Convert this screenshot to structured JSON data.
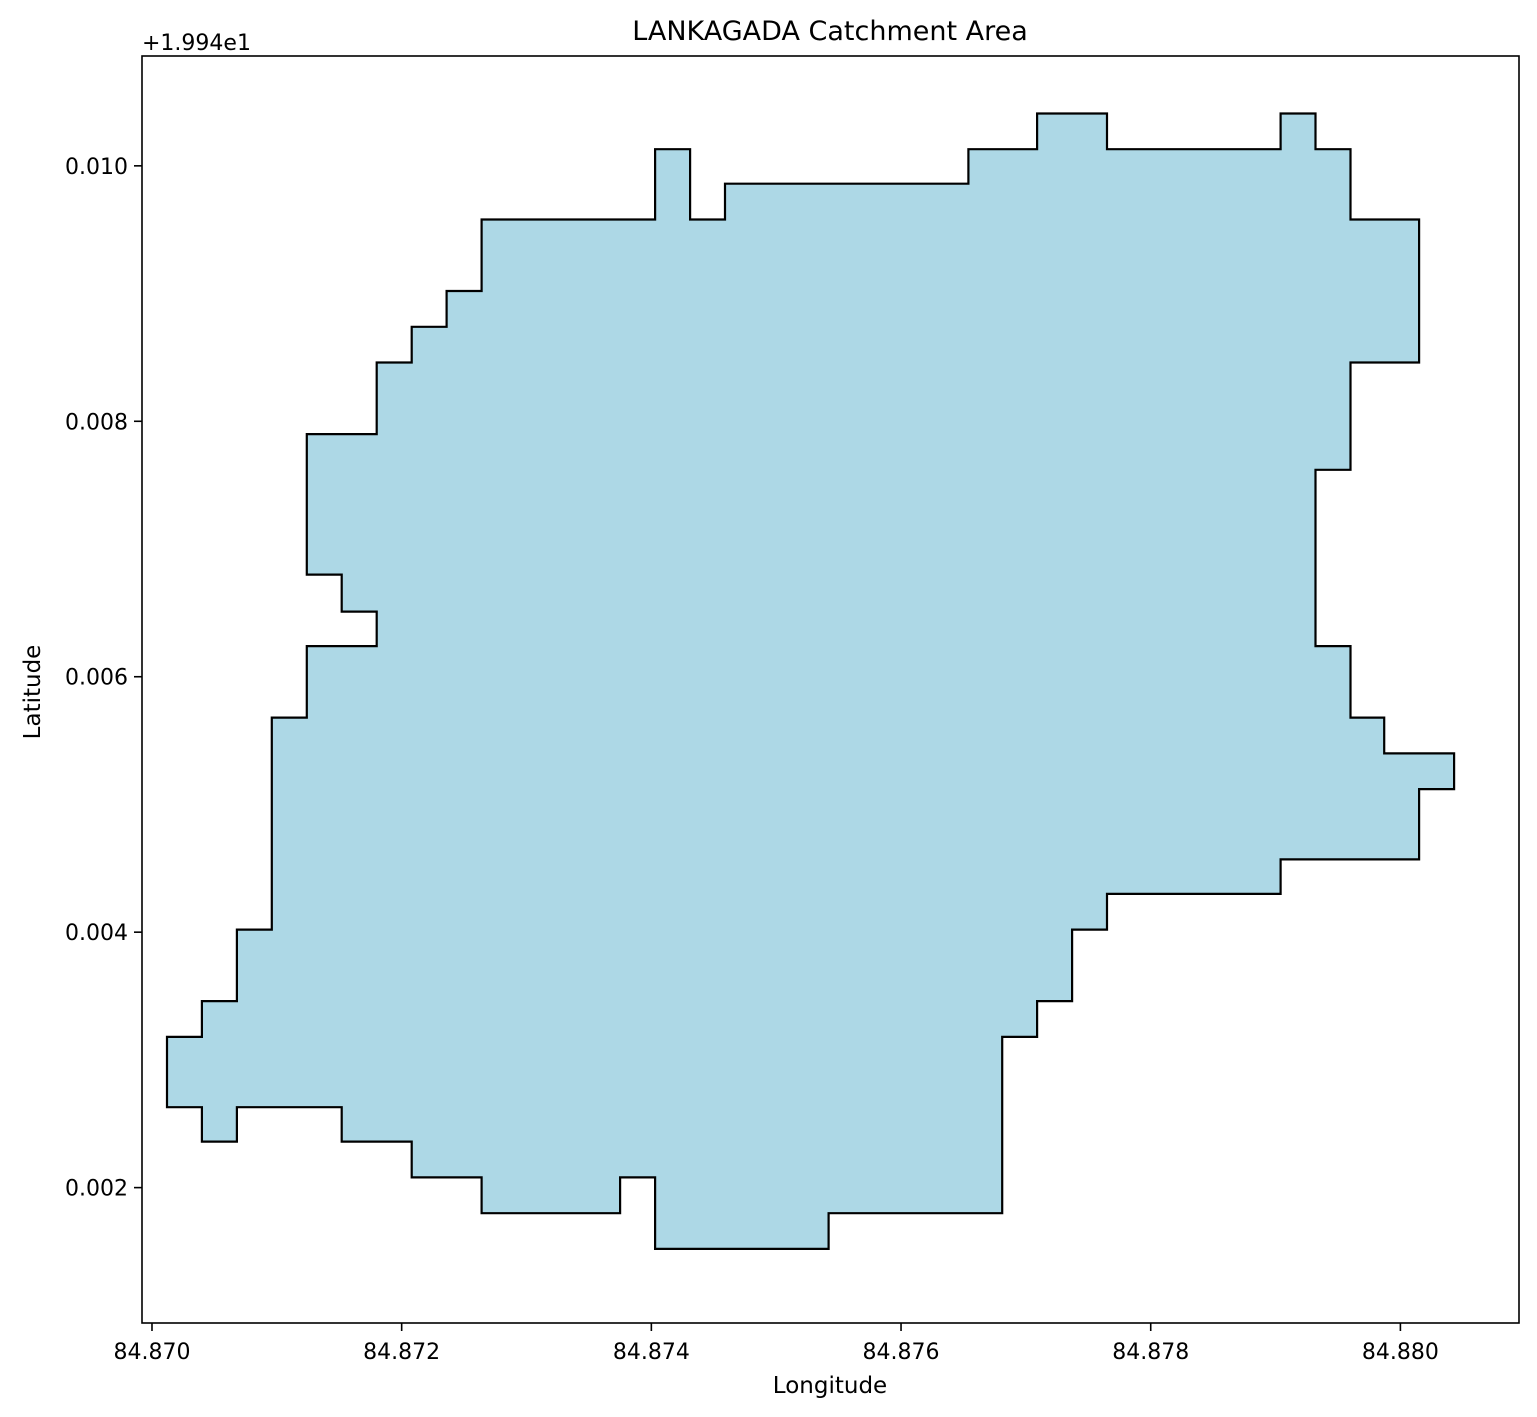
{
  "chart_data": {
    "type": "area",
    "title": "LANKAGADA Catchment Area",
    "xlabel": "Longitude",
    "ylabel": "Latitude",
    "y_offset_text": "+1.994e1",
    "xlim": [
      84.86992,
      84.88095
    ],
    "ylim": [
      19.94094,
      19.95086
    ],
    "x_ticks": [
      "84.870",
      "84.872",
      "84.874",
      "84.876",
      "84.878",
      "84.880"
    ],
    "x_tick_values": [
      84.87,
      84.872,
      84.874,
      84.876,
      84.878,
      84.88
    ],
    "y_ticks": [
      "0.002",
      "0.004",
      "0.006",
      "0.008",
      "0.010"
    ],
    "y_tick_values": [
      19.942,
      19.944,
      19.946,
      19.948,
      19.95
    ],
    "grid": false,
    "fill_color": "#add8e6",
    "edge_color": "#000000",
    "polygon": [
      [
        84.87012,
        19.94318
      ],
      [
        84.8704,
        19.94318
      ],
      [
        84.8704,
        19.94346
      ],
      [
        84.87068,
        19.94346
      ],
      [
        84.87068,
        19.94402
      ],
      [
        84.87096,
        19.94402
      ],
      [
        84.87096,
        19.94568
      ],
      [
        84.87124,
        19.94568
      ],
      [
        84.87124,
        19.94624
      ],
      [
        84.8718,
        19.94624
      ],
      [
        84.8718,
        19.94651
      ],
      [
        84.87152,
        19.94651
      ],
      [
        84.87152,
        19.9468
      ],
      [
        84.87124,
        19.9468
      ],
      [
        84.87124,
        19.9479
      ],
      [
        84.8718,
        19.9479
      ],
      [
        84.8718,
        19.94846
      ],
      [
        84.87208,
        19.94846
      ],
      [
        84.87208,
        19.94874
      ],
      [
        84.87236,
        19.94874
      ],
      [
        84.87236,
        19.94902
      ],
      [
        84.87264,
        19.94902
      ],
      [
        84.87264,
        19.94958
      ],
      [
        84.87403,
        19.94958
      ],
      [
        84.87403,
        19.95013
      ],
      [
        84.87431,
        19.95013
      ],
      [
        84.87431,
        19.94958
      ],
      [
        84.87459,
        19.94958
      ],
      [
        84.87459,
        19.94986
      ],
      [
        84.87654,
        19.94986
      ],
      [
        84.87654,
        19.95013
      ],
      [
        84.87709,
        19.95013
      ],
      [
        84.87709,
        19.95041
      ],
      [
        84.87765,
        19.95041
      ],
      [
        84.87765,
        19.95013
      ],
      [
        84.87904,
        19.95013
      ],
      [
        84.87904,
        19.95041
      ],
      [
        84.87932,
        19.95041
      ],
      [
        84.87932,
        19.95013
      ],
      [
        84.8796,
        19.95013
      ],
      [
        84.8796,
        19.94958
      ],
      [
        84.88015,
        19.94958
      ],
      [
        84.88015,
        19.94846
      ],
      [
        84.8796,
        19.94846
      ],
      [
        84.8796,
        19.94762
      ],
      [
        84.87932,
        19.94762
      ],
      [
        84.87932,
        19.94624
      ],
      [
        84.8796,
        19.94624
      ],
      [
        84.8796,
        19.94568
      ],
      [
        84.87987,
        19.94568
      ],
      [
        84.87987,
        19.9454
      ],
      [
        84.88043,
        19.9454
      ],
      [
        84.88043,
        19.94512
      ],
      [
        84.88015,
        19.94512
      ],
      [
        84.88015,
        19.94457
      ],
      [
        84.87904,
        19.94457
      ],
      [
        84.87904,
        19.9443
      ],
      [
        84.87765,
        19.9443
      ],
      [
        84.87765,
        19.94402
      ],
      [
        84.87737,
        19.94402
      ],
      [
        84.87737,
        19.94346
      ],
      [
        84.87709,
        19.94346
      ],
      [
        84.87709,
        19.94318
      ],
      [
        84.87681,
        19.94318
      ],
      [
        84.87681,
        19.9418
      ],
      [
        84.87542,
        19.9418
      ],
      [
        84.87542,
        19.94152
      ],
      [
        84.87403,
        19.94152
      ],
      [
        84.87403,
        19.94208
      ],
      [
        84.87375,
        19.94208
      ],
      [
        84.87375,
        19.9418
      ],
      [
        84.87264,
        19.9418
      ],
      [
        84.87264,
        19.94208
      ],
      [
        84.87208,
        19.94208
      ],
      [
        84.87208,
        19.94236
      ],
      [
        84.87152,
        19.94236
      ],
      [
        84.87152,
        19.94263
      ],
      [
        84.87068,
        19.94263
      ],
      [
        84.87068,
        19.94236
      ],
      [
        84.8704,
        19.94236
      ],
      [
        84.8704,
        19.94263
      ],
      [
        84.87012,
        19.94263
      ]
    ]
  }
}
